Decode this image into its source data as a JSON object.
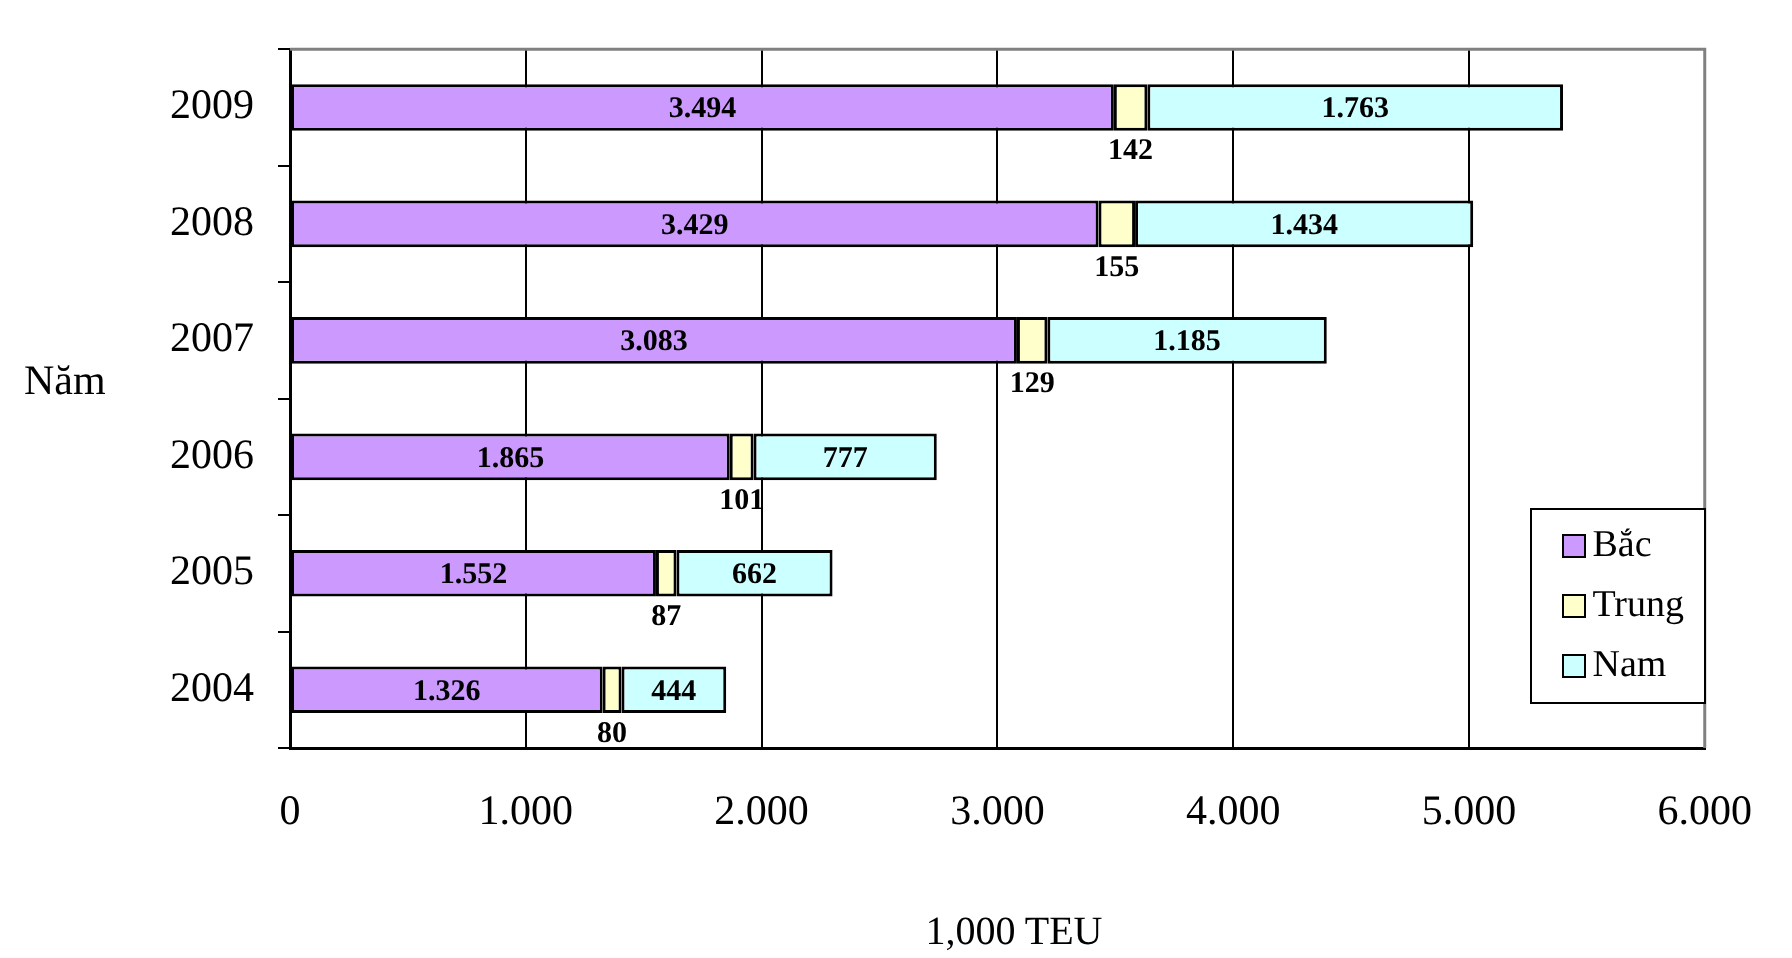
{
  "chart_data": {
    "type": "bar",
    "orientation": "horizontal",
    "stacked": true,
    "xlabel": "1,000 TEU",
    "ylabel": "Năm",
    "categories": [
      "2009",
      "2008",
      "2007",
      "2006",
      "2005",
      "2004"
    ],
    "series": [
      {
        "name": "Bắc",
        "color": "#cc99ff",
        "values": [
          3494,
          3429,
          3083,
          1865,
          1552,
          1326
        ],
        "value_labels": [
          "3.494",
          "3.429",
          "3.083",
          "1.865",
          "1.552",
          "1.326"
        ]
      },
      {
        "name": "Trung",
        "color": "#ffffcc",
        "values": [
          142,
          155,
          129,
          101,
          87,
          80
        ],
        "value_labels": [
          "142",
          "155",
          "129",
          "101",
          "87",
          "80"
        ]
      },
      {
        "name": "Nam",
        "color": "#ccffff",
        "values": [
          1763,
          1434,
          1185,
          777,
          662,
          444
        ],
        "value_labels": [
          "1.763",
          "1.434",
          "1.185",
          "777",
          "662",
          "444"
        ]
      }
    ],
    "xlim": [
      0,
      6000
    ],
    "xticks": [
      0,
      {
        "value": 1000,
        "label": "1.000"
      },
      {
        "value": 2000,
        "label": "2.000"
      },
      {
        "value": 3000,
        "label": "3.000"
      },
      {
        "value": 4000,
        "label": "4.000"
      },
      {
        "value": 5000,
        "label": "5.000"
      },
      {
        "value": 6000,
        "label": "6.000"
      }
    ],
    "grid": "x",
    "legend": "bottom right"
  }
}
